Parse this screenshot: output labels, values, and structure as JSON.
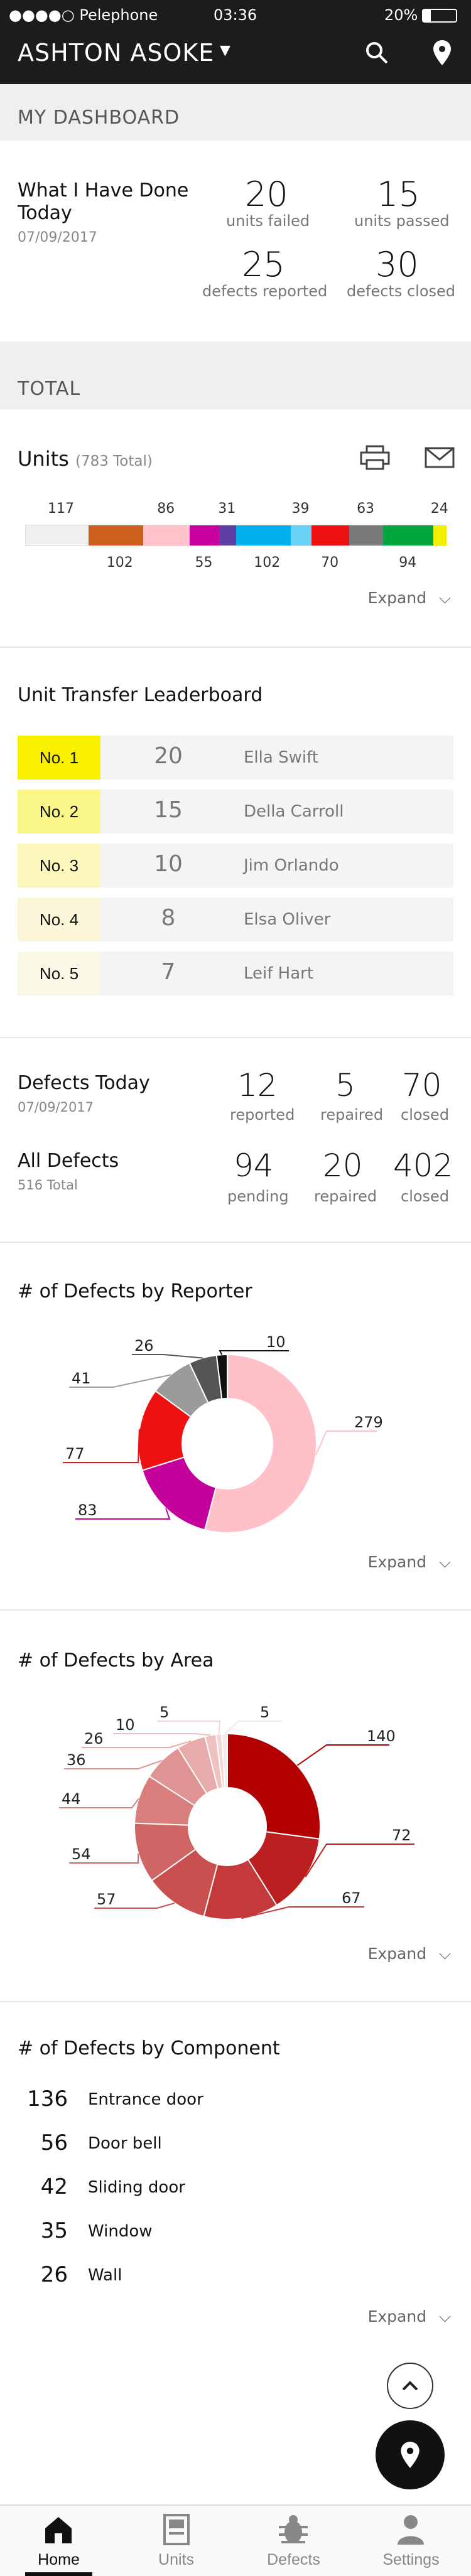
{
  "status_bar": {
    "carrier": "●●●●○ Pelephone",
    "time": "03:36",
    "battery": "20%"
  },
  "header": {
    "title": "ASHTON ASOKE"
  },
  "sections": {
    "dashboard": "MY DASHBOARD",
    "total": "TOTAL"
  },
  "today": {
    "title": "What I Have Done Today",
    "date": "07/09/2017",
    "stats": [
      {
        "value": "20",
        "label": "units failed"
      },
      {
        "value": "15",
        "label": "units passed"
      },
      {
        "value": "25",
        "label": "defects reported"
      },
      {
        "value": "30",
        "label": "defects closed"
      }
    ]
  },
  "units": {
    "title": "Units",
    "total": "(783 Total)",
    "expand": "Expand",
    "segments": [
      {
        "value": 117,
        "color": "#efefef"
      },
      {
        "value": 102,
        "color": "#cc5f1a"
      },
      {
        "value": 86,
        "color": "#ffc2c8"
      },
      {
        "value": 55,
        "color": "#c800a0"
      },
      {
        "value": 31,
        "color": "#5e3fa6"
      },
      {
        "value": 102,
        "color": "#00b0ec"
      },
      {
        "value": 39,
        "color": "#6ad1f5"
      },
      {
        "value": 70,
        "color": "#ee1111"
      },
      {
        "value": 63,
        "color": "#7a7a7a"
      },
      {
        "value": 94,
        "color": "#00a63e"
      },
      {
        "value": 24,
        "color": "#f5f000"
      }
    ],
    "top_labels": [
      "117",
      "86",
      "31",
      "39",
      "63",
      "24"
    ],
    "bottom_labels": [
      "102",
      "55",
      "102",
      "70",
      "94"
    ]
  },
  "leaderboard": {
    "title": "Unit Transfer Leaderboard",
    "rows": [
      {
        "rank": "No. 1",
        "count": "20",
        "name": "Ella Swift",
        "color": "#f9f100"
      },
      {
        "rank": "No. 2",
        "count": "15",
        "name": "Della Carroll",
        "color": "#fbf688"
      },
      {
        "rank": "No. 3",
        "count": "10",
        "name": "Jim Orlando",
        "color": "#fcf7bd"
      },
      {
        "rank": "No. 4",
        "count": "8",
        "name": "Elsa Oliver",
        "color": "#fbf7d8"
      },
      {
        "rank": "No. 5",
        "count": "7",
        "name": "Leif Hart",
        "color": "#faf7e6"
      }
    ]
  },
  "defects": {
    "today_title": "Defects Today",
    "today_date": "07/09/2017",
    "today_stats": [
      {
        "value": "12",
        "label": "reported"
      },
      {
        "value": "5",
        "label": "repaired"
      },
      {
        "value": "70",
        "label": "closed"
      }
    ],
    "all_title": "All Defects",
    "all_total": "516 Total",
    "all_stats": [
      {
        "value": "94",
        "label": "pending"
      },
      {
        "value": "20",
        "label": "repaired"
      },
      {
        "value": "402",
        "label": "closed"
      }
    ]
  },
  "chart_data": [
    {
      "type": "pie",
      "title": "# of Defects by Reporter",
      "values": [
        279,
        83,
        77,
        41,
        26,
        10
      ],
      "colors": [
        "#ffc0c8",
        "#c4009a",
        "#ee1111",
        "#9b9b9b",
        "#555555",
        "#111111"
      ],
      "labels": [
        "279",
        "83",
        "77",
        "41",
        "26",
        "10"
      ]
    },
    {
      "type": "pie",
      "title": "# of Defects by Area",
      "values": [
        140,
        72,
        67,
        57,
        54,
        44,
        36,
        26,
        10,
        5,
        5
      ],
      "colors": [
        "#b30000",
        "#bb1f1f",
        "#c43a3a",
        "#ca4f4f",
        "#d06565",
        "#d97d7d",
        "#e09393",
        "#e8abab",
        "#efc2c2",
        "#f4d6d6",
        "#f9e8e8"
      ],
      "labels": [
        "140",
        "72",
        "67",
        "57",
        "54",
        "44",
        "36",
        "26",
        "10",
        "5",
        "5"
      ]
    },
    {
      "type": "table",
      "title": "# of Defects by Component",
      "rows": [
        {
          "value": "136",
          "name": "Entrance door"
        },
        {
          "value": "56",
          "name": "Door bell"
        },
        {
          "value": "42",
          "name": "Sliding door"
        },
        {
          "value": "35",
          "name": "Window"
        },
        {
          "value": "26",
          "name": "Wall"
        }
      ]
    }
  ],
  "expand_label": "Expand",
  "tabs": [
    {
      "label": "Home",
      "active": true
    },
    {
      "label": "Units"
    },
    {
      "label": "Defects"
    },
    {
      "label": "Settings"
    }
  ]
}
